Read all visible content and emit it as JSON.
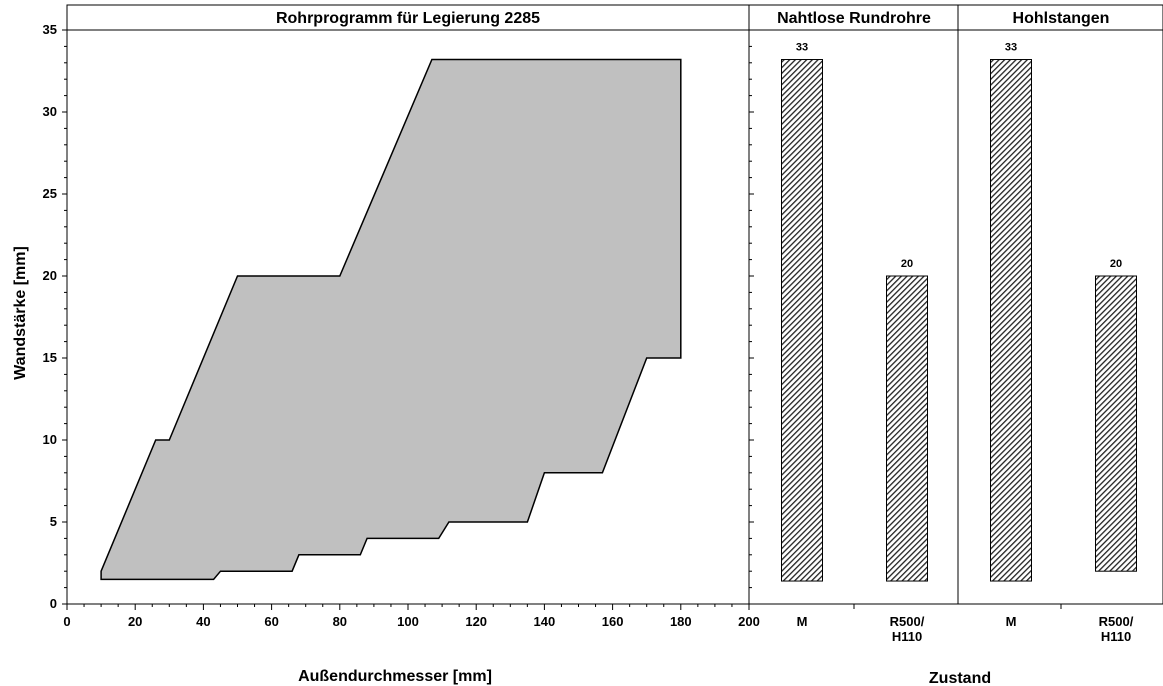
{
  "chart_data": [
    {
      "type": "area",
      "title": "Rohrprogramm für Legierung 2285",
      "xlabel": "Außendurchmesser [mm]",
      "ylabel": "Wandstärke [mm]",
      "xlim": [
        0,
        200
      ],
      "ylim": [
        0,
        35
      ],
      "xticks": [
        0,
        20,
        40,
        60,
        80,
        100,
        120,
        140,
        160,
        180,
        200
      ],
      "yticks": [
        0,
        5,
        10,
        15,
        20,
        25,
        30,
        35
      ],
      "grid": false,
      "fill_color": "#c0c0c0",
      "outline_color": "#000000",
      "polygon": [
        [
          10,
          2
        ],
        [
          26,
          10
        ],
        [
          30,
          10
        ],
        [
          50,
          20
        ],
        [
          80,
          20
        ],
        [
          107,
          33.2
        ],
        [
          180,
          33.2
        ],
        [
          180,
          15
        ],
        [
          170,
          15
        ],
        [
          157,
          8
        ],
        [
          140,
          8
        ],
        [
          135,
          5
        ],
        [
          112,
          5
        ],
        [
          109,
          4
        ],
        [
          88,
          4
        ],
        [
          86,
          3
        ],
        [
          68,
          3
        ],
        [
          66,
          2
        ],
        [
          45,
          2
        ],
        [
          43,
          1.5
        ],
        [
          10,
          1.5
        ]
      ]
    },
    {
      "type": "bar",
      "title": "Nahtlose Rundrohre",
      "categories": [
        "M",
        "R500/\nH110"
      ],
      "bars": [
        {
          "low": 1.4,
          "high": 33.2,
          "label": "33"
        },
        {
          "low": 1.4,
          "high": 20,
          "label": "20"
        }
      ],
      "ylim": [
        0,
        35
      ],
      "pattern": "diagonal-hatch"
    },
    {
      "type": "bar",
      "title": "Hohlstangen",
      "categories": [
        "M",
        "R500/\nH110"
      ],
      "bars": [
        {
          "low": 1.4,
          "high": 33.2,
          "label": "33"
        },
        {
          "low": 2,
          "high": 20,
          "label": "20"
        }
      ],
      "ylim": [
        0,
        35
      ],
      "pattern": "diagonal-hatch"
    }
  ],
  "shared": {
    "xlabel_right": "Zustand"
  }
}
